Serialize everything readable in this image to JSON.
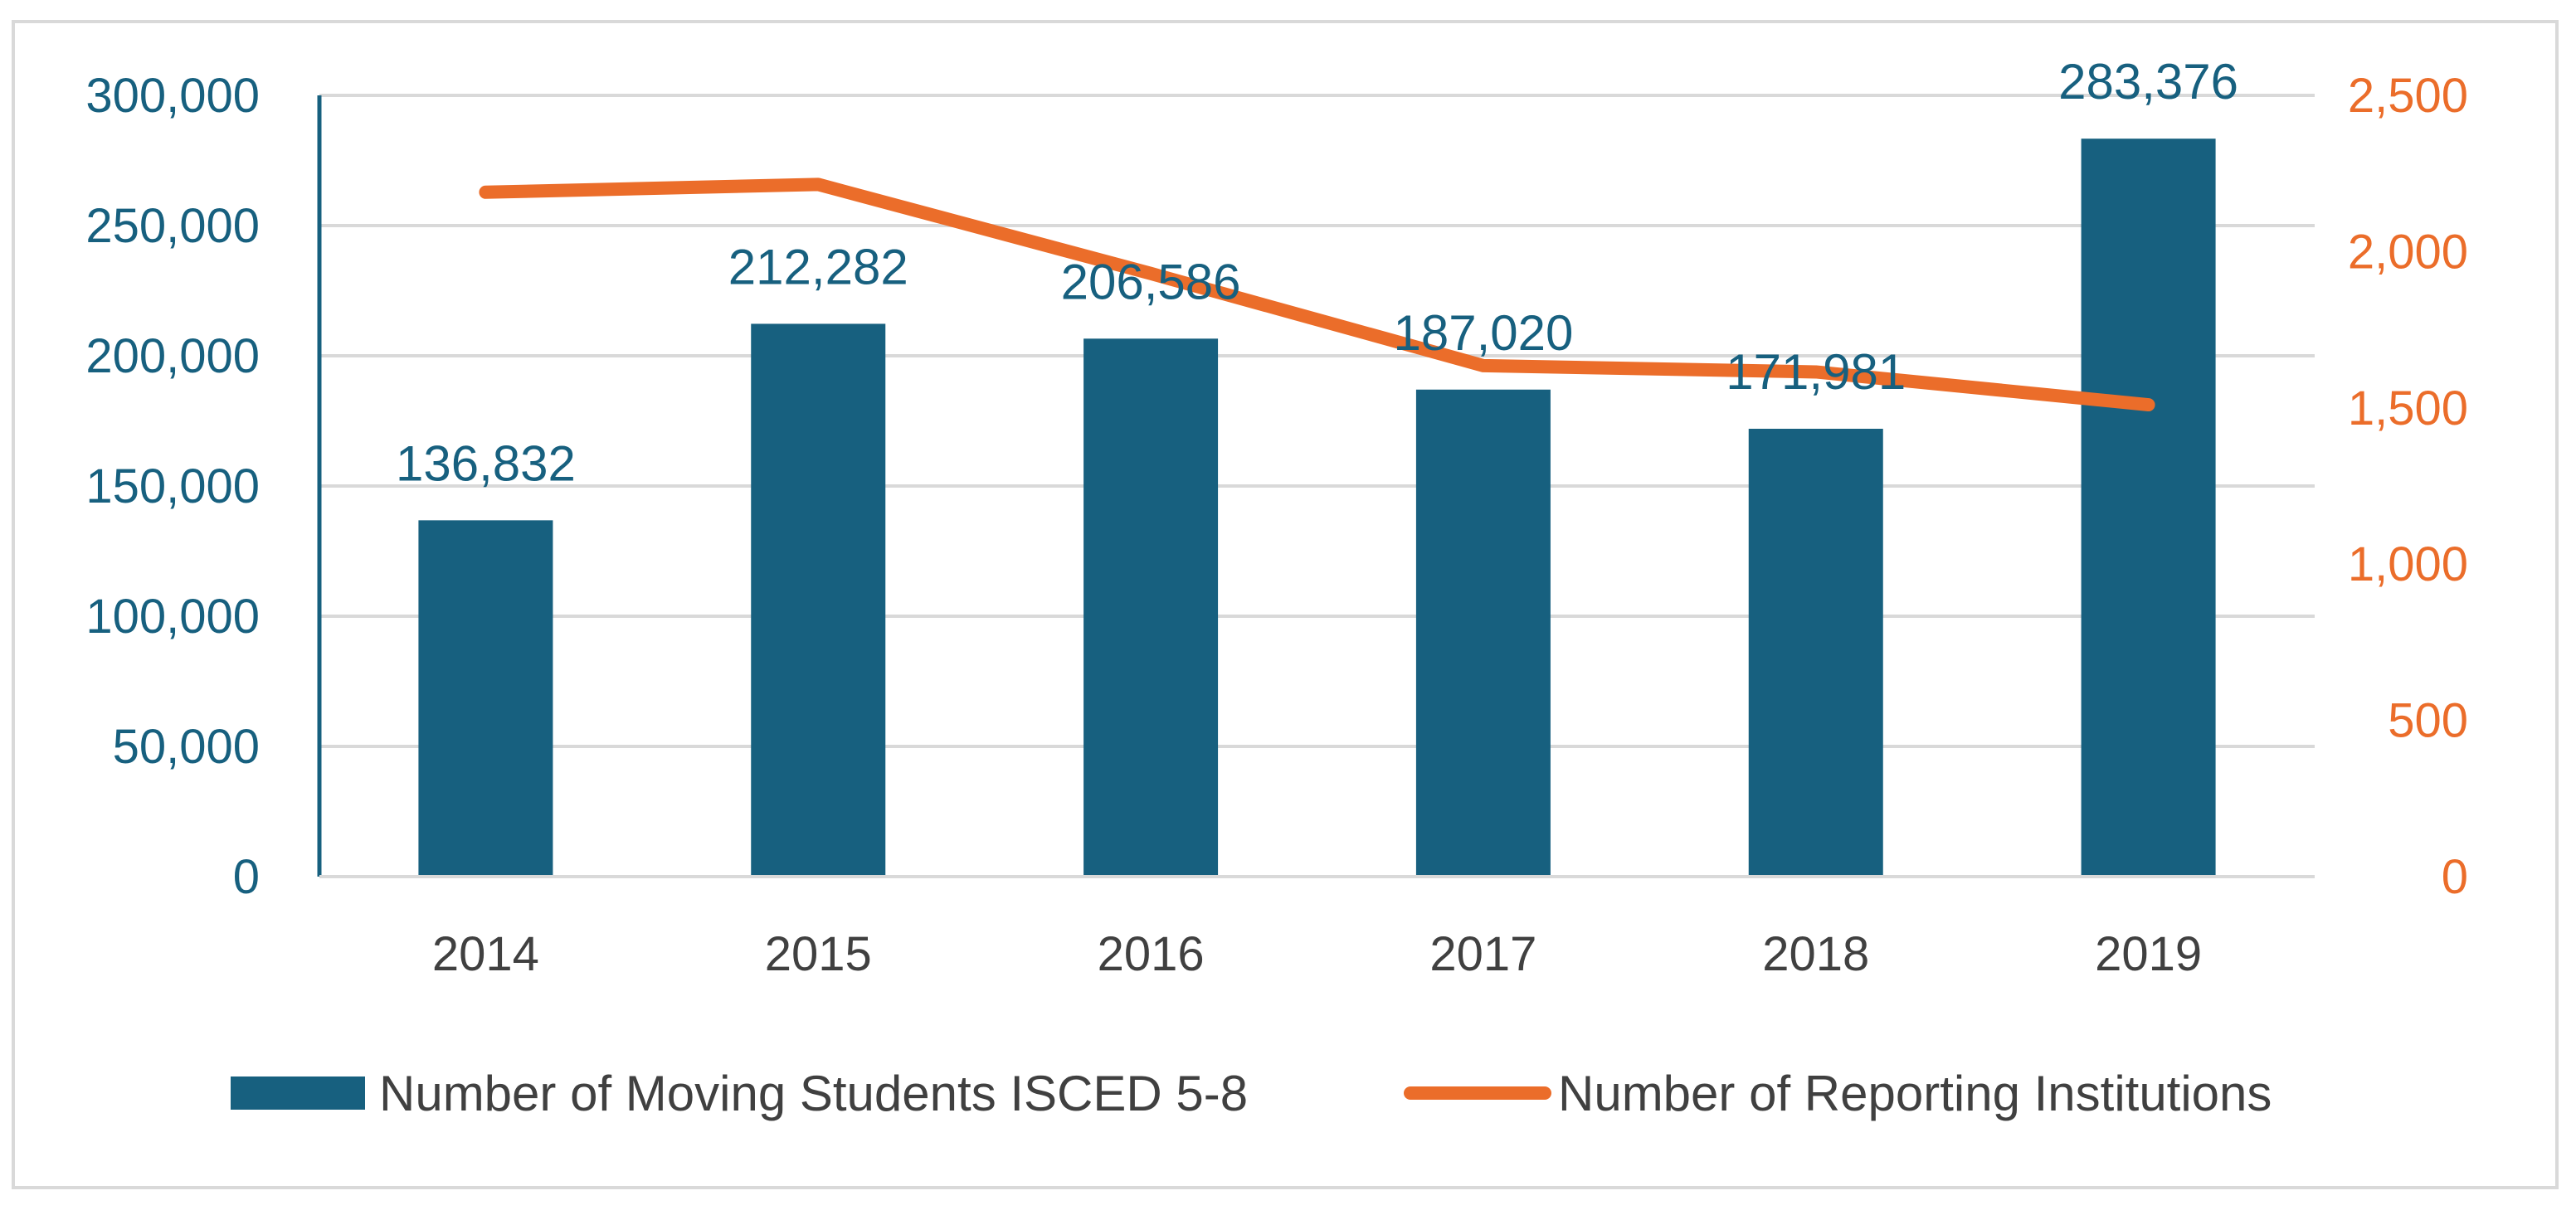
{
  "chart_data": {
    "type": "bar",
    "categories": [
      "2014",
      "2015",
      "2016",
      "2017",
      "2018",
      "2019"
    ],
    "series": [
      {
        "name": "Number of Moving Students ISCED 5-8",
        "type": "bar",
        "axis": "left",
        "values": [
          136832,
          212282,
          206586,
          187020,
          171981,
          283376
        ],
        "labels": [
          "136,832",
          "212,282",
          "206,586",
          "187,020",
          "171,981",
          "283,376"
        ],
        "color": "#17607f"
      },
      {
        "name": "Number of Reporting Institutions",
        "type": "line",
        "axis": "right",
        "values": [
          2190,
          2215,
          1930,
          1635,
          1615,
          1510
        ],
        "color": "#eb6d2a"
      }
    ],
    "left_axis": {
      "range": [
        0,
        300000
      ],
      "ticks": [
        "0",
        "50,000",
        "100,000",
        "150,000",
        "200,000",
        "250,000",
        "300,000"
      ],
      "color": "#17607f"
    },
    "right_axis": {
      "range": [
        0,
        2500
      ],
      "ticks": [
        "0",
        "500",
        "1,000",
        "1,500",
        "2,000",
        "2,500"
      ],
      "color": "#eb6d2a"
    },
    "grid": true,
    "legend_position": "bottom",
    "title": "",
    "xlabel": "",
    "ylabel": ""
  }
}
